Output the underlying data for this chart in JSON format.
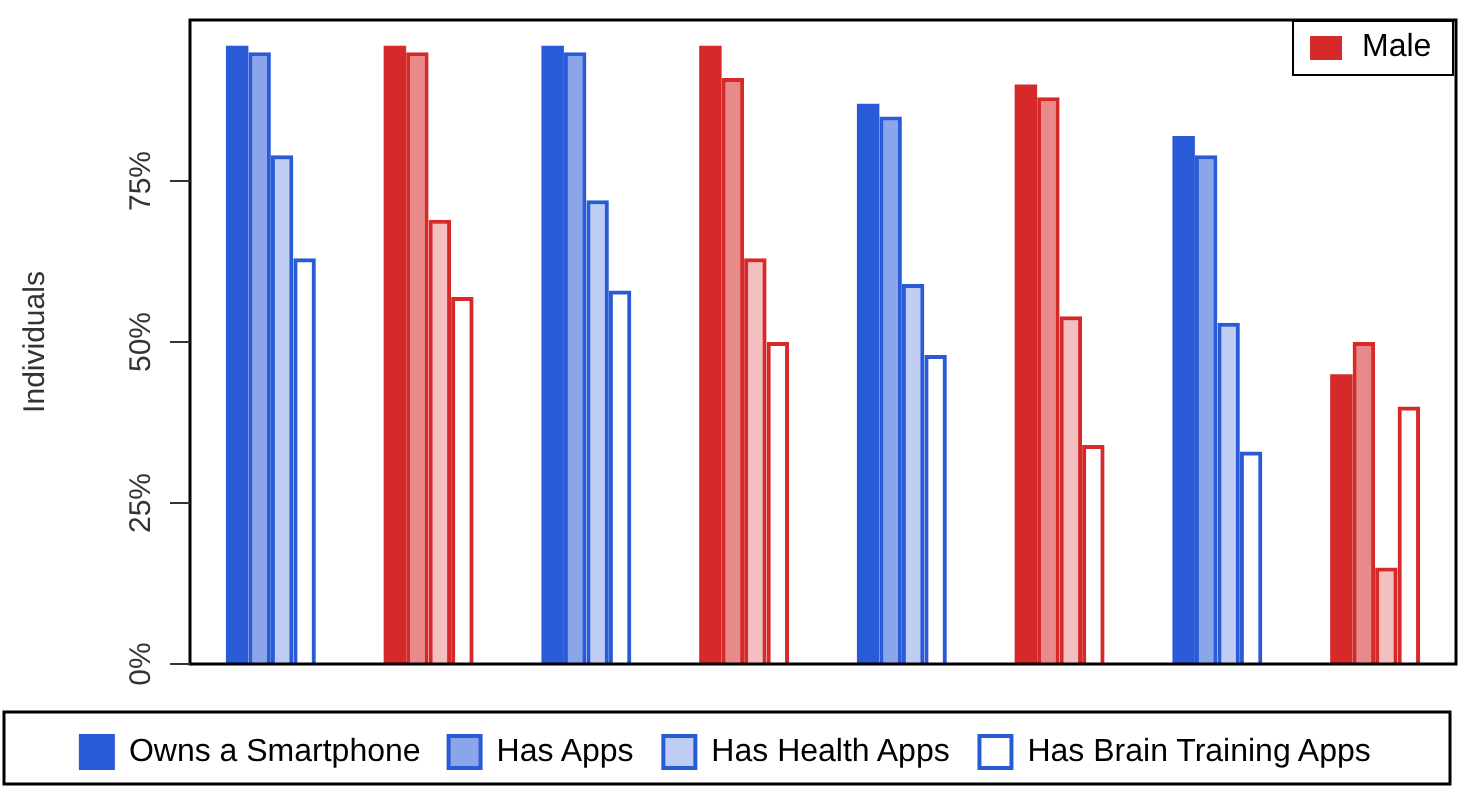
{
  "chart_data": {
    "type": "bar",
    "ylabel": "Individuals",
    "categories": [
      null,
      null,
      null,
      null,
      null,
      null,
      null,
      null
    ],
    "series": [
      {
        "name": "Owns a Smartphone",
        "colors": [
          "#2a5bd7",
          "#d62a2a",
          "#2a5bd7",
          "#d62a2a",
          "#2a5bd7",
          "#d62a2a",
          "#2a5bd7",
          "#d62a2a"
        ],
        "values": [
          96,
          96,
          96,
          96,
          87,
          90,
          82,
          45
        ]
      },
      {
        "name": "Has Apps",
        "colors": [
          "#2a5bd7",
          "#d62a2a",
          "#2a5bd7",
          "#d62a2a",
          "#2a5bd7",
          "#d62a2a",
          "#2a5bd7",
          "#d62a2a"
        ],
        "values": [
          95,
          95,
          95,
          91,
          85,
          88,
          79,
          50
        ]
      },
      {
        "name": "Has Health Apps",
        "colors": [
          "#2a5bd7",
          "#d62a2a",
          "#2a5bd7",
          "#d62a2a",
          "#2a5bd7",
          "#d62a2a",
          "#2a5bd7",
          "#d62a2a"
        ],
        "values": [
          79,
          69,
          72,
          63,
          59,
          54,
          53,
          15
        ]
      },
      {
        "name": "Has Brain Training Apps",
        "colors": [
          "#2a5bd7",
          "#d62a2a",
          "#2a5bd7",
          "#d62a2a",
          "#2a5bd7",
          "#d62a2a",
          "#2a5bd7",
          "#d62a2a"
        ],
        "values": [
          63,
          57,
          58,
          50,
          48,
          34,
          33,
          40
        ]
      }
    ],
    "ylim": [
      0,
      100
    ],
    "yticks": [
      {
        "value": 0,
        "label": "0%"
      },
      {
        "value": 25,
        "label": "25%"
      },
      {
        "value": 50,
        "label": "50%"
      },
      {
        "value": 75,
        "label": "75%"
      }
    ],
    "grid": false,
    "legend": "bottom",
    "annotations": [
      "Male"
    ]
  }
}
